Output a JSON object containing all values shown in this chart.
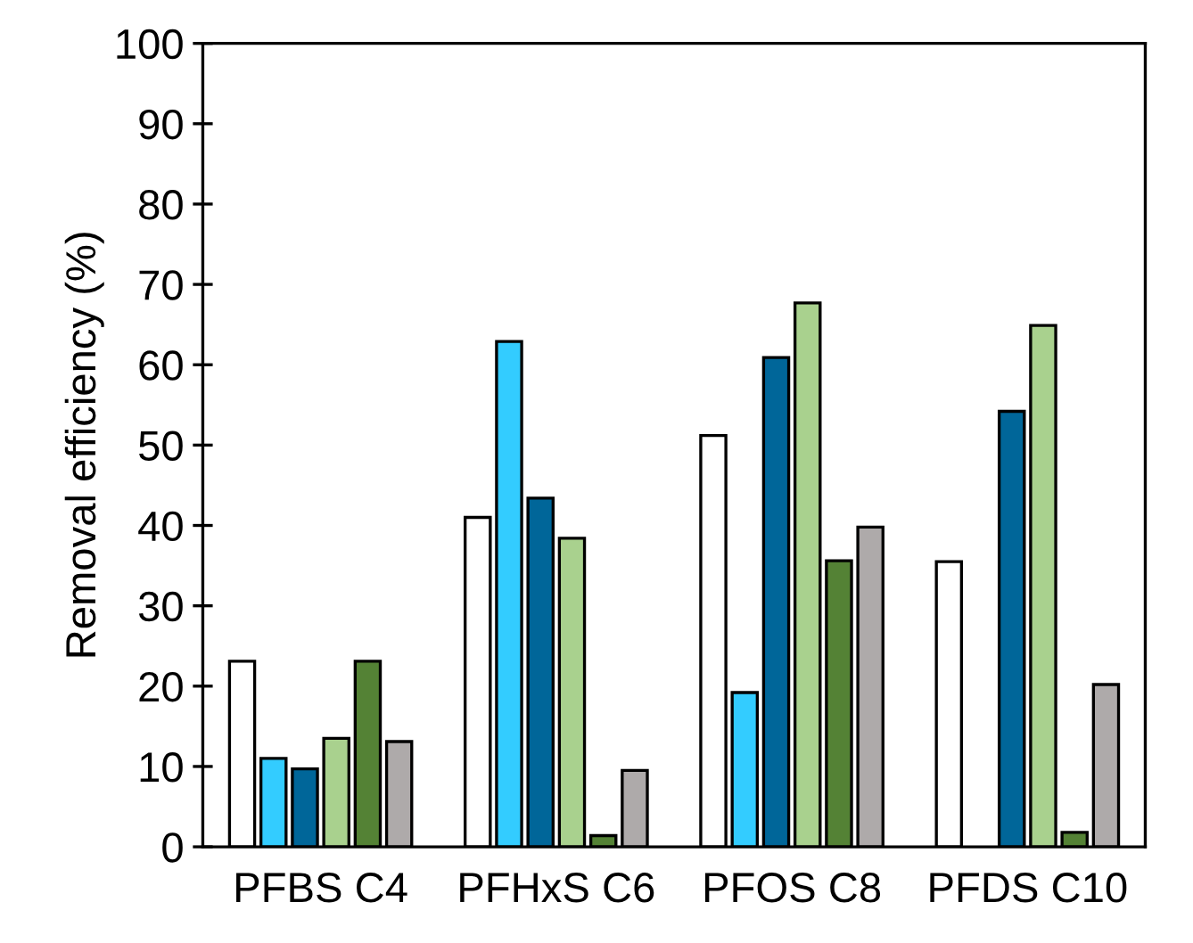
{
  "chart_data": {
    "type": "bar",
    "ylabel": "Removal efficiency (%)",
    "categories": [
      "PFBS C4",
      "PFHxS C6",
      "PFOS C8",
      "PFDS C10"
    ],
    "series": [
      {
        "color": "#ffffff",
        "values": [
          23.1,
          41.0,
          51.2,
          35.5
        ]
      },
      {
        "color": "#33ccff",
        "values": [
          11.0,
          62.9,
          19.2,
          null
        ]
      },
      {
        "color": "#006699",
        "values": [
          9.7,
          43.4,
          60.9,
          54.2
        ]
      },
      {
        "color": "#a9d18e",
        "values": [
          13.5,
          38.4,
          67.7,
          64.9
        ]
      },
      {
        "color": "#548235",
        "values": [
          23.1,
          1.4,
          35.6,
          1.8
        ]
      },
      {
        "color": "#aeaaaa",
        "values": [
          13.1,
          9.5,
          39.8,
          20.2
        ]
      }
    ],
    "ylim": [
      0,
      100
    ],
    "yticks": [
      0,
      10,
      20,
      30,
      40,
      50,
      60,
      70,
      80,
      90,
      100
    ],
    "grid": false
  }
}
